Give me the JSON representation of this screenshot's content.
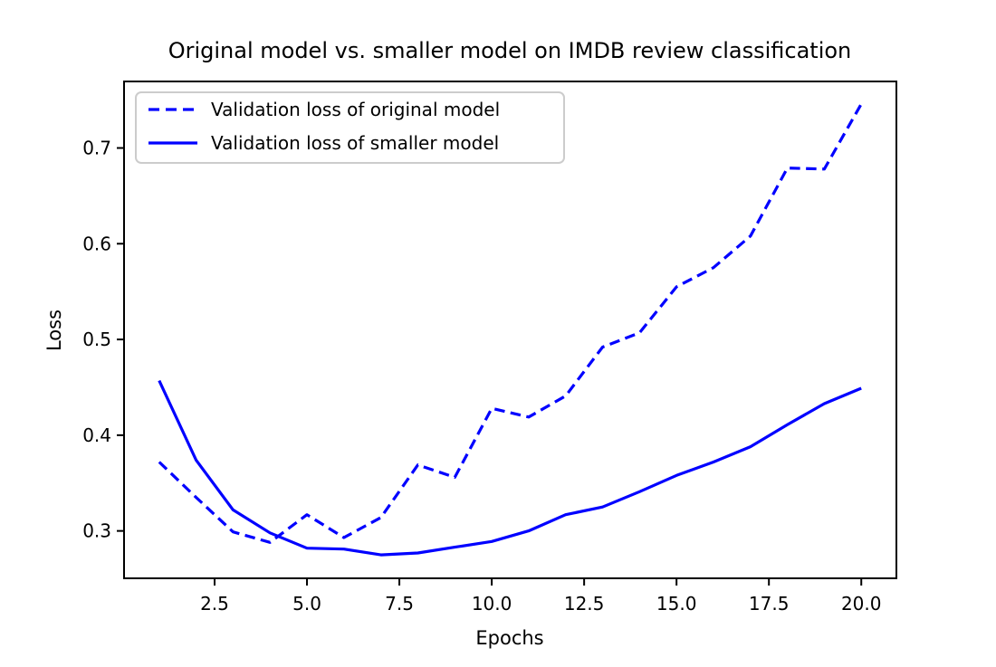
{
  "figure": {
    "background": "#ffffff",
    "accent_color": "#0000ff"
  },
  "chart_data": {
    "type": "line",
    "title": "Original model vs. smaller model on IMDB review classification",
    "xlabel": "Epochs",
    "ylabel": "Loss",
    "x": [
      1,
      2,
      3,
      4,
      5,
      6,
      7,
      8,
      9,
      10,
      11,
      12,
      13,
      14,
      15,
      16,
      17,
      18,
      19,
      20
    ],
    "series": [
      {
        "name": "Validation loss of original model",
        "line_style": "dashed",
        "color": "#0000ff",
        "values": [
          0.372,
          0.335,
          0.299,
          0.288,
          0.317,
          0.293,
          0.314,
          0.369,
          0.356,
          0.428,
          0.419,
          0.441,
          0.492,
          0.507,
          0.555,
          0.575,
          0.608,
          0.679,
          0.678,
          0.746
        ]
      },
      {
        "name": "Validation loss of smaller model",
        "line_style": "solid",
        "color": "#0000ff",
        "values": [
          0.457,
          0.374,
          0.322,
          0.298,
          0.282,
          0.281,
          0.275,
          0.277,
          0.283,
          0.289,
          0.3,
          0.317,
          0.325,
          0.341,
          0.358,
          0.372,
          0.388,
          0.411,
          0.433,
          0.449
        ]
      }
    ],
    "xticks": {
      "positions": [
        2.5,
        5.0,
        7.5,
        10.0,
        12.5,
        15.0,
        17.5,
        20.0
      ],
      "labels": [
        "2.5",
        "5.0",
        "7.5",
        "10.0",
        "12.5",
        "15.0",
        "17.5",
        "20.0"
      ]
    },
    "yticks": {
      "positions": [
        0.3,
        0.4,
        0.5,
        0.6,
        0.7
      ],
      "labels": [
        "0.3",
        "0.4",
        "0.5",
        "0.6",
        "0.7"
      ]
    },
    "xlim": [
      0.05,
      20.95
    ],
    "ylim": [
      0.2505,
      0.7695
    ],
    "grid": false,
    "legend": {
      "position": "upper left",
      "entries": [
        "Validation loss of original model",
        "Validation loss of smaller model"
      ]
    }
  }
}
